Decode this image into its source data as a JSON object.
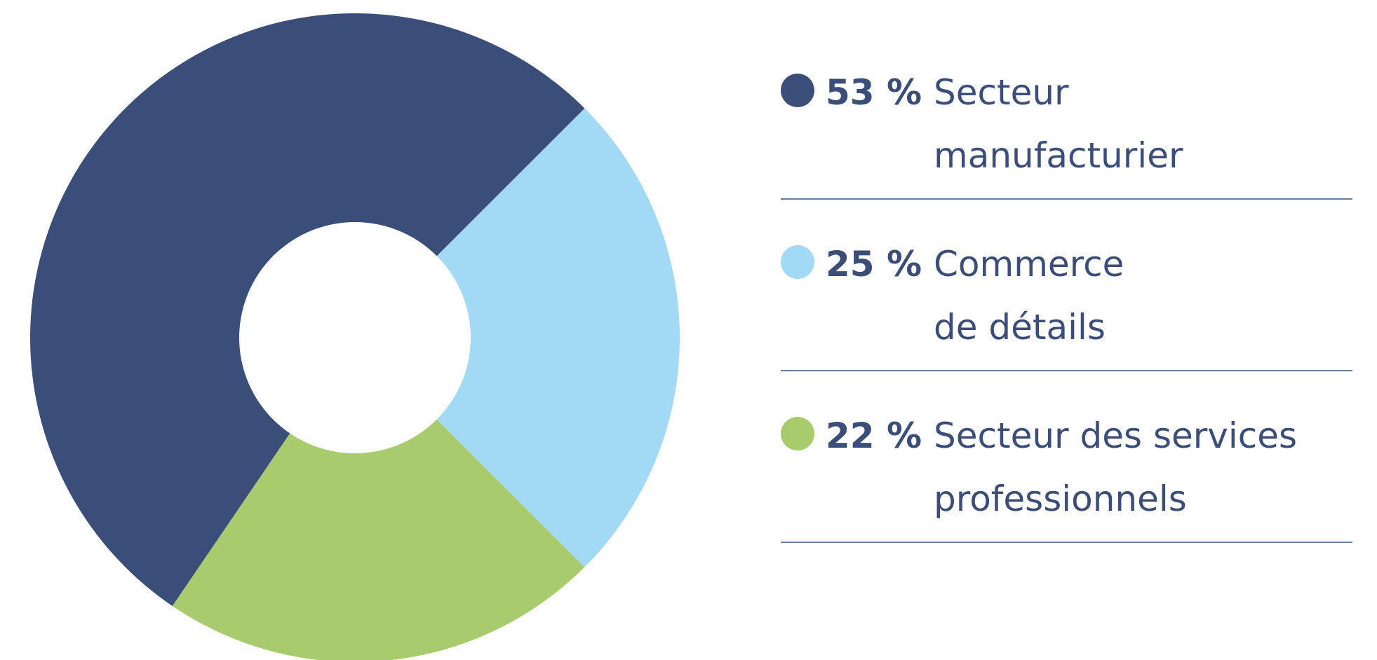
{
  "chart_data": {
    "type": "donut",
    "categories": [
      [
        "Secteur",
        "manufacturier"
      ],
      [
        "Commerce",
        "de détails"
      ],
      [
        "Secteur des services",
        "professionnels"
      ]
    ],
    "values": [
      53,
      25,
      22
    ],
    "value_labels": [
      "53 %",
      "25 %",
      "22 %"
    ],
    "colors": [
      "#3b4e7a",
      "#a2d9f5",
      "#a8cc6d"
    ]
  }
}
